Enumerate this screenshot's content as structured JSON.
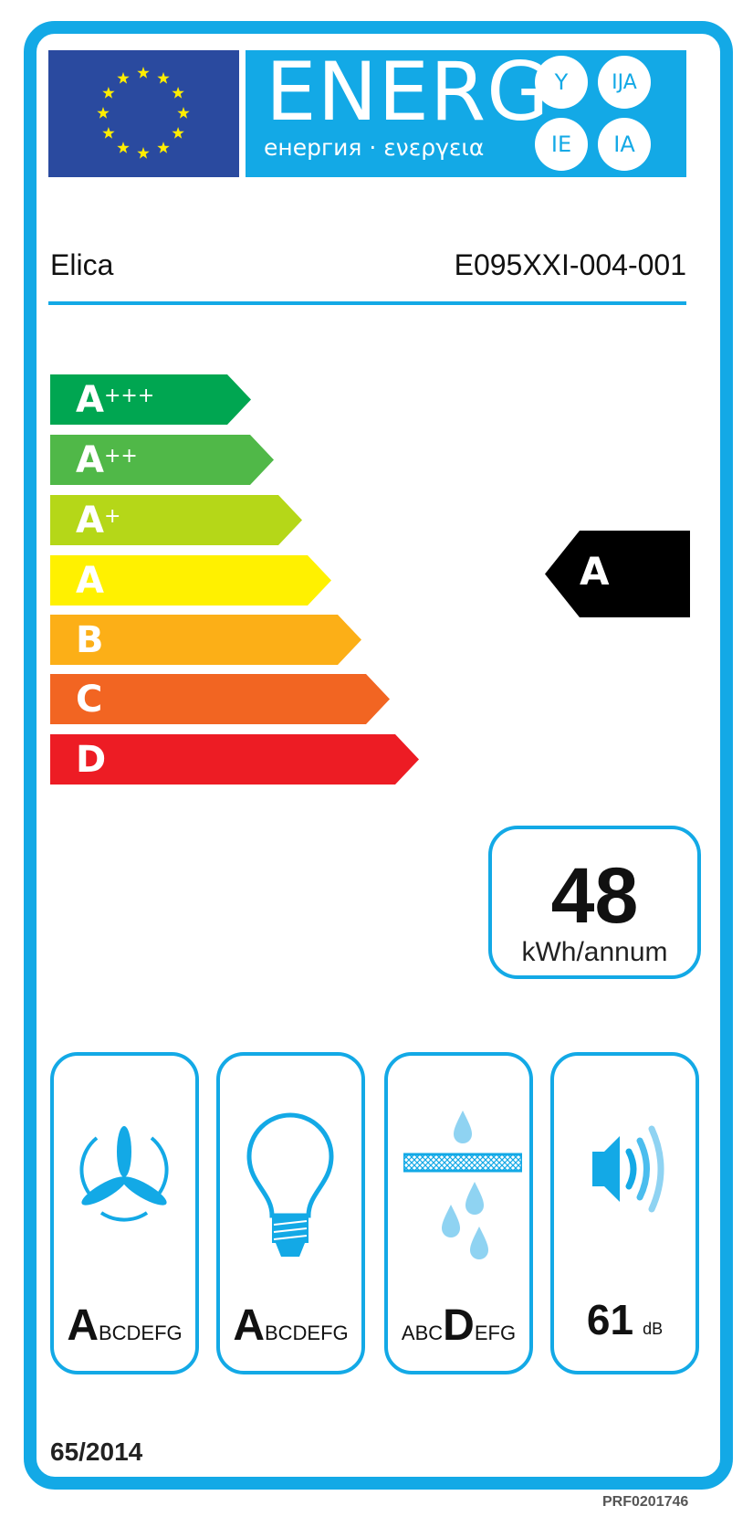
{
  "header": {
    "title": "ENERG",
    "subtitle": "енергия · ενεργεια",
    "language_suffixes": [
      "Y",
      "IJA",
      "IE",
      "IA"
    ],
    "brand_color": "#13a9e6",
    "flag_color": "#2a4a9f",
    "star_color": "#ffed00"
  },
  "product": {
    "supplier": "Elica",
    "model": "E095XXI-004-001"
  },
  "energy_scale": {
    "classes": [
      {
        "label": "A",
        "sup": "+++",
        "color": "#00a651"
      },
      {
        "label": "A",
        "sup": "++",
        "color": "#50b848"
      },
      {
        "label": "A",
        "sup": "+",
        "color": "#b5d718"
      },
      {
        "label": "A",
        "sup": "",
        "color": "#fff100"
      },
      {
        "label": "B",
        "sup": "",
        "color": "#fcaf17"
      },
      {
        "label": "C",
        "sup": "",
        "color": "#f26522"
      },
      {
        "label": "D",
        "sup": "",
        "color": "#ed1c24"
      }
    ],
    "product_class": "A"
  },
  "consumption": {
    "value": "48",
    "unit": "kWh/annum"
  },
  "pictograms": [
    {
      "icon": "fan-icon",
      "rest_before": "",
      "class": "A",
      "rest_after": "BCDEFG"
    },
    {
      "icon": "light-bulb-icon",
      "rest_before": "",
      "class": "A",
      "rest_after": "BCDEFG"
    },
    {
      "icon": "grease-filter-icon",
      "rest_before": "ABC",
      "class": "D",
      "rest_after": "EFG"
    },
    {
      "icon": "speaker-noise-icon",
      "value": "61",
      "unit": "dB"
    }
  ],
  "footer": {
    "regulation": "65/2014",
    "code": "PRF0201746"
  }
}
